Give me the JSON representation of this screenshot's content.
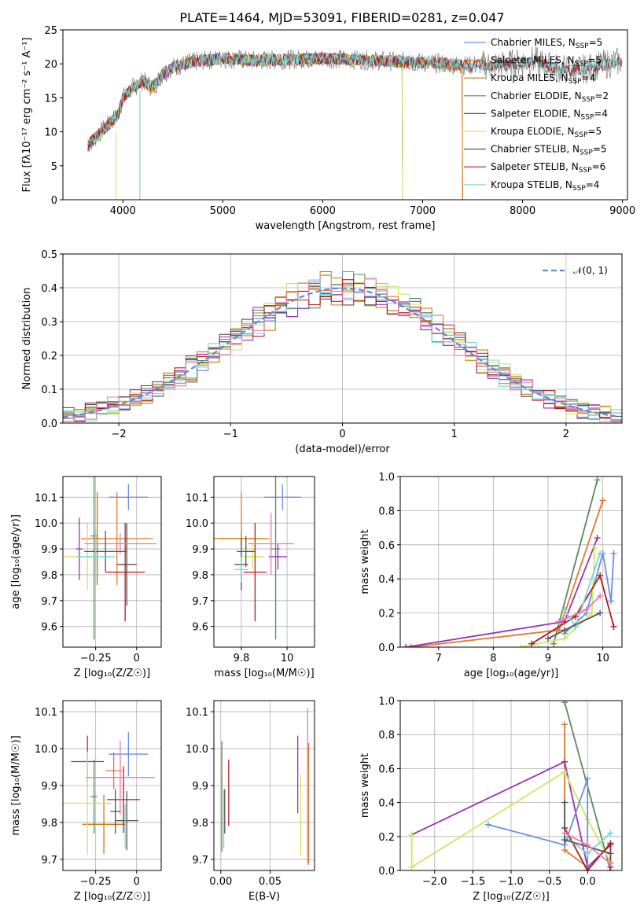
{
  "figure": {
    "title": "PLATE=1464, MJD=53091, FIBERID=0281, z=0.047"
  },
  "colors": {
    "chabrier_miles": "#6b8fe0",
    "salpeter_miles": "#e07a2e",
    "kroupa_miles": "#cc7a00",
    "chabrier_elodie": "#5b8a5b",
    "salpeter_elodie": "#9932b0",
    "kroupa_elodie": "#cde664",
    "chabrier_stelib": "#555555",
    "salpeter_stelib": "#b01c1c",
    "kroupa_stelib": "#7ad6dc",
    "pink": "#e67ab4",
    "gray": "#888888",
    "gauss": "#5a8ad6"
  },
  "chart_data": [
    {
      "type": "line",
      "id": "spectrum",
      "title": "PLATE=1464, MJD=53091, FIBERID=0281, z=0.047",
      "xlabel": "wavelength [Angstrom, rest frame]",
      "ylabel": "Flux [fλ10⁻¹⁷ erg cm⁻² s⁻¹ A⁻¹]",
      "xlim": [
        3400,
        9050
      ],
      "ylim": [
        0,
        25
      ],
      "xticks": [
        "4000",
        "5000",
        "6000",
        "7000",
        "8000",
        "9000"
      ],
      "yticks": [
        "0",
        "5",
        "10",
        "15",
        "20",
        "25"
      ],
      "legend_position": "top-right",
      "series": [
        {
          "name": "Chabrier MILES, N",
          "sub": "SSP",
          "tail": "=5",
          "color": "#6b8fe0"
        },
        {
          "name": "Salpeter MILES, N",
          "sub": "SSP",
          "tail": "=5",
          "color": "#e07a2e"
        },
        {
          "name": "Kroupa MILES, N",
          "sub": "SSP",
          "tail": "=4",
          "color": "#cc7a00"
        },
        {
          "name": "Chabrier ELODIE, N",
          "sub": "SSP",
          "tail": "=2",
          "color": "#5b8a5b"
        },
        {
          "name": "Salpeter ELODIE, N",
          "sub": "SSP",
          "tail": "=4",
          "color": "#9932b0"
        },
        {
          "name": "Kroupa ELODIE, N",
          "sub": "SSP",
          "tail": "=5",
          "color": "#cde664"
        },
        {
          "name": "Chabrier STELIB, N",
          "sub": "SSP",
          "tail": "=5",
          "color": "#555555"
        },
        {
          "name": "Salpeter STELIB, N",
          "sub": "SSP",
          "tail": "=6",
          "color": "#b01c1c"
        },
        {
          "name": "Kroupa STELIB, N",
          "sub": "SSP",
          "tail": "=4",
          "color": "#7ad6dc"
        }
      ],
      "continuum": {
        "x": [
          3650,
          3750,
          3850,
          3950,
          4000,
          4100,
          4200,
          4300,
          4400,
          4500,
          4700,
          5000,
          5300,
          5600,
          6000,
          6500,
          6800,
          7100,
          7400,
          7700,
          7900,
          8100,
          8300,
          8500,
          8700,
          9000
        ],
        "y": [
          8,
          9.5,
          11,
          12.5,
          15,
          16.5,
          17.5,
          16.5,
          18.5,
          19.5,
          20.3,
          20.8,
          20.5,
          20.6,
          20.8,
          20.5,
          20.3,
          20.1,
          19.8,
          19.8,
          20.0,
          20.5,
          19.5,
          19.0,
          19.5,
          20.5
        ]
      },
      "model_cutoffs": {
        "miles_upper_wavelength": 7400,
        "elodie_upper_wavelength": 6800
      }
    },
    {
      "type": "histogram",
      "id": "residuals",
      "xlabel": "(data-model)/error",
      "ylabel": "Normed distribution",
      "xlim": [
        -2.5,
        2.5
      ],
      "ylim": [
        0,
        0.5
      ],
      "xticks": [
        "−2",
        "−1",
        "0",
        "1",
        "2"
      ],
      "yticks": [
        "0.0",
        "0.1",
        "0.2",
        "0.3",
        "0.4",
        "0.5"
      ],
      "bin_width": 0.1,
      "legend": "𝒩(0, 1)",
      "legend_position": "top-right",
      "reference_curve": "normal distribution, mean 0, sigma 1"
    },
    {
      "type": "scatter",
      "id": "age-vs-Z",
      "xlabel": "Z [log₁₀(Z/Z☉)]",
      "ylabel": "age  [log₁₀(age/yr)]",
      "xlim": [
        -0.45,
        0.15
      ],
      "ylim": [
        9.52,
        10.18
      ],
      "xticks": [
        -0.25,
        0.0
      ],
      "yticks": [
        9.6,
        9.7,
        9.8,
        9.9,
        10.0,
        10.1
      ],
      "points": [
        {
          "c": "#6b8fe0",
          "x": -0.05,
          "y": 10.1,
          "xe": 0.12,
          "ye": 0.05
        },
        {
          "c": "#e07a2e",
          "x": -0.12,
          "y": 9.94,
          "xe": 0.22,
          "ye": 0.18
        },
        {
          "c": "#cc7a00",
          "x": -0.24,
          "y": 9.94,
          "xe": 0.02,
          "ye": 0.18
        },
        {
          "c": "#5b8a5b",
          "x": -0.26,
          "y": 9.95,
          "xe": 0.02,
          "ye": 0.4
        },
        {
          "c": "#9932b0",
          "x": -0.35,
          "y": 9.9,
          "xe": 0.02,
          "ye": 0.12
        },
        {
          "c": "#cde664",
          "x": -0.3,
          "y": 9.87,
          "xe": 0.14,
          "ye": 0.13
        },
        {
          "c": "#555555",
          "x": -0.06,
          "y": 9.84,
          "xe": 0.06,
          "ye": 0.16
        },
        {
          "c": "#b01c1c",
          "x": -0.07,
          "y": 9.81,
          "xe": 0.12,
          "ye": 0.19
        },
        {
          "c": "#e67ab4",
          "x": -0.1,
          "y": 9.92,
          "xe": 0.22,
          "ye": 0.04
        },
        {
          "c": "#555555",
          "x": -0.19,
          "y": 9.89,
          "xe": 0.13,
          "ye": 0.08
        },
        {
          "c": "#7ad6dc",
          "x": -0.25,
          "y": 9.87,
          "xe": 0.12,
          "ye": 0.1
        }
      ]
    },
    {
      "type": "scatter",
      "id": "age-vs-mass",
      "xlabel": "mass [log₁₀(M/M☉)]",
      "ylabel": "",
      "xlim": [
        9.68,
        10.12
      ],
      "ylim": [
        9.52,
        10.18
      ],
      "xticks": [
        9.8,
        10.0
      ],
      "yticks": [
        9.6,
        9.7,
        9.8,
        9.9,
        10.0,
        10.1
      ],
      "points": [
        {
          "c": "#6b8fe0",
          "x": 9.98,
          "y": 10.1,
          "xe": 0.08,
          "ye": 0.05
        },
        {
          "c": "#e07a2e",
          "x": 9.8,
          "y": 9.94,
          "xe": 0.1,
          "ye": 0.18
        },
        {
          "c": "#cc7a00",
          "x": 9.8,
          "y": 9.94,
          "xe": 0.12,
          "ye": 0.02
        },
        {
          "c": "#5b8a5b",
          "x": 9.95,
          "y": 9.9,
          "xe": 0.02,
          "ye": 0.35
        },
        {
          "c": "#9932b0",
          "x": 9.96,
          "y": 9.87,
          "xe": 0.04,
          "ye": 0.05
        },
        {
          "c": "#cde664",
          "x": 9.85,
          "y": 9.87,
          "xe": 0.05,
          "ye": 0.05
        },
        {
          "c": "#555555",
          "x": 9.8,
          "y": 9.84,
          "xe": 0.03,
          "ye": 0.1
        },
        {
          "c": "#b01c1c",
          "x": 9.86,
          "y": 9.81,
          "xe": 0.05,
          "ye": 0.19
        },
        {
          "c": "#e67ab4",
          "x": 9.93,
          "y": 9.92,
          "xe": 0.1,
          "ye": 0.12
        },
        {
          "c": "#555555",
          "x": 9.82,
          "y": 9.89,
          "xe": 0.04,
          "ye": 0.06
        },
        {
          "c": "#7ad6dc",
          "x": 9.8,
          "y": 9.82,
          "xe": 0.03,
          "ye": 0.05
        }
      ]
    },
    {
      "type": "line",
      "id": "massweight-vs-age",
      "xlabel": "age  [log₁₀(age/yr)]",
      "ylabel": "mass weight",
      "xlim": [
        6.3,
        10.35
      ],
      "ylim": [
        0,
        1
      ],
      "xticks": [
        7,
        8,
        9,
        10
      ],
      "yticks": [
        "0.0",
        "0.2",
        "0.4",
        "0.6",
        "0.8",
        "1.0"
      ],
      "series": [
        {
          "c": "#5b8a5b",
          "x": [
            9.1,
            9.9
          ],
          "y": [
            0.02,
            0.98
          ]
        },
        {
          "c": "#e07a2e",
          "x": [
            6.5,
            9.2,
            10.0
          ],
          "y": [
            0.0,
            0.1,
            0.86
          ]
        },
        {
          "c": "#9932b0",
          "x": [
            6.4,
            9.3,
            9.9
          ],
          "y": [
            0.0,
            0.15,
            0.64
          ]
        },
        {
          "c": "#6b8fe0",
          "x": [
            9.3,
            9.7,
            10.0,
            10.15,
            10.2
          ],
          "y": [
            0.08,
            0.2,
            0.55,
            0.27,
            0.55
          ]
        },
        {
          "c": "#cde664",
          "x": [
            8.5,
            9.3,
            9.8,
            9.85
          ],
          "y": [
            0.0,
            0.05,
            0.2,
            0.58
          ]
        },
        {
          "c": "#b01c1c",
          "x": [
            8.7,
            9.5,
            9.95,
            10.2
          ],
          "y": [
            0.02,
            0.18,
            0.42,
            0.12
          ]
        },
        {
          "c": "#7ad6dc",
          "x": [
            9.3,
            9.5,
            9.95
          ],
          "y": [
            0.22,
            0.12,
            0.55
          ]
        },
        {
          "c": "#555555",
          "x": [
            9.0,
            9.3,
            9.95
          ],
          "y": [
            0.05,
            0.1,
            0.2
          ]
        },
        {
          "c": "#e67ab4",
          "x": [
            9.2,
            9.7,
            9.95
          ],
          "y": [
            0.15,
            0.22,
            0.3
          ]
        }
      ]
    },
    {
      "type": "scatter",
      "id": "mass-vs-Z",
      "xlabel": "Z [log₁₀(Z/Z☉)]",
      "ylabel": "mass [log₁₀(M/M☉)]",
      "xlim": [
        -0.45,
        0.15
      ],
      "ylim": [
        9.67,
        10.13
      ],
      "xticks": [
        -0.25,
        0.0
      ],
      "yticks": [
        9.7,
        9.8,
        9.9,
        10.0,
        10.1
      ],
      "points": [
        {
          "c": "#6b8fe0",
          "x": -0.05,
          "y": 9.985,
          "xe": 0.12,
          "ye": 0.06
        },
        {
          "c": "#e07a2e",
          "x": -0.14,
          "y": 9.94,
          "xe": 0.05,
          "ye": 0.05
        },
        {
          "c": "#cc7a00",
          "x": -0.2,
          "y": 9.795,
          "xe": 0.13,
          "ye": 0.08
        },
        {
          "c": "#5b8a5b",
          "x": -0.26,
          "y": 9.87,
          "xe": 0.02,
          "ye": 0.1
        },
        {
          "c": "#9932b0",
          "x": -0.3,
          "y": 9.965,
          "xe": 0.1,
          "ye": 0.07
        },
        {
          "c": "#cde664",
          "x": -0.3,
          "y": 9.852,
          "xe": 0.15,
          "ye": 0.14
        },
        {
          "c": "#555555",
          "x": -0.06,
          "y": 9.805,
          "xe": 0.07,
          "ye": 0.08
        },
        {
          "c": "#b01c1c",
          "x": -0.08,
          "y": 9.862,
          "xe": 0.1,
          "ye": 0.09
        },
        {
          "c": "#e67ab4",
          "x": -0.1,
          "y": 9.922,
          "xe": 0.21,
          "ye": 0.1
        },
        {
          "c": "#555555",
          "x": -0.13,
          "y": 9.83,
          "xe": 0.03,
          "ye": 0.06
        },
        {
          "c": "#7ad6dc",
          "x": -0.07,
          "y": 9.79,
          "xe": 0.02,
          "ye": 0.06
        }
      ]
    },
    {
      "type": "scatter",
      "id": "mass-vs-EBV",
      "xlabel": "E(B-V)",
      "ylabel": "",
      "xlim": [
        -0.007,
        0.095
      ],
      "ylim": [
        9.67,
        10.13
      ],
      "xticks": [
        "0.00",
        "0.05"
      ],
      "yticks": [
        9.7,
        9.8,
        9.9,
        10.0,
        10.1
      ],
      "points": [
        {
          "c": "#5b8a5b",
          "x": 0.001,
          "y": 9.87,
          "xe": 0,
          "ye": 0.15
        },
        {
          "c": "#7ad6dc",
          "x": 0.003,
          "y": 9.81,
          "xe": 0,
          "ye": 0.08
        },
        {
          "c": "#555555",
          "x": 0.004,
          "y": 9.83,
          "xe": 0,
          "ye": 0.06
        },
        {
          "c": "#b01c1c",
          "x": 0.008,
          "y": 9.88,
          "xe": 0,
          "ye": 0.09
        },
        {
          "c": "#9932b0",
          "x": 0.078,
          "y": 9.93,
          "xe": 0,
          "ye": 0.105
        },
        {
          "c": "#cde664",
          "x": 0.081,
          "y": 9.82,
          "xe": 0,
          "ye": 0.11
        },
        {
          "c": "#e67ab4",
          "x": 0.088,
          "y": 9.9,
          "xe": 0,
          "ye": 0.21
        },
        {
          "c": "#e07a2e",
          "x": 0.089,
          "y": 9.85,
          "xe": 0,
          "ye": 0.165
        }
      ]
    },
    {
      "type": "line",
      "id": "massweight-vs-Z",
      "xlabel": "Z [log₁₀(Z/Z☉)]",
      "ylabel": "mass weight",
      "xlim": [
        -2.45,
        0.45
      ],
      "ylim": [
        0,
        1
      ],
      "xticks": [
        "−2.0",
        "−1.5",
        "−1.0",
        "−0.5",
        "0.0"
      ],
      "yticks": [
        "0.0",
        "0.2",
        "0.4",
        "0.6",
        "0.8",
        "1.0"
      ],
      "series": [
        {
          "c": "#5b8a5b",
          "x": [
            -0.3,
            0.3
          ],
          "y": [
            0.99,
            0.0
          ]
        },
        {
          "c": "#e07a2e",
          "x": [
            -0.3,
            -0.3,
            0.0
          ],
          "y": [
            0.86,
            0.12,
            0.02
          ]
        },
        {
          "c": "#9932b0",
          "x": [
            -2.3,
            -0.3,
            0.0,
            0.3
          ],
          "y": [
            0.21,
            0.64,
            0.02,
            0.15
          ]
        },
        {
          "c": "#cde664",
          "x": [
            -2.3,
            -2.3,
            -0.3,
            0.0,
            0.3
          ],
          "y": [
            0.21,
            0.02,
            0.58,
            0.3,
            0.05
          ]
        },
        {
          "c": "#6b8fe0",
          "x": [
            -1.3,
            -0.3,
            0.0,
            0.0
          ],
          "y": [
            0.27,
            0.15,
            0.54,
            0.02
          ]
        },
        {
          "c": "#b01c1c",
          "x": [
            -0.3,
            0.0,
            0.3,
            0.3
          ],
          "y": [
            0.25,
            0.0,
            0.16,
            0.02
          ]
        },
        {
          "c": "#7ad6dc",
          "x": [
            -0.3,
            0.0,
            0.3
          ],
          "y": [
            0.2,
            0.1,
            0.22
          ]
        },
        {
          "c": "#555555",
          "x": [
            -0.3,
            -0.3,
            0.3
          ],
          "y": [
            0.4,
            0.18,
            0.1
          ]
        },
        {
          "c": "#e67ab4",
          "x": [
            -0.3,
            0.0,
            0.3
          ],
          "y": [
            0.22,
            0.15,
            0.04
          ]
        }
      ]
    }
  ]
}
